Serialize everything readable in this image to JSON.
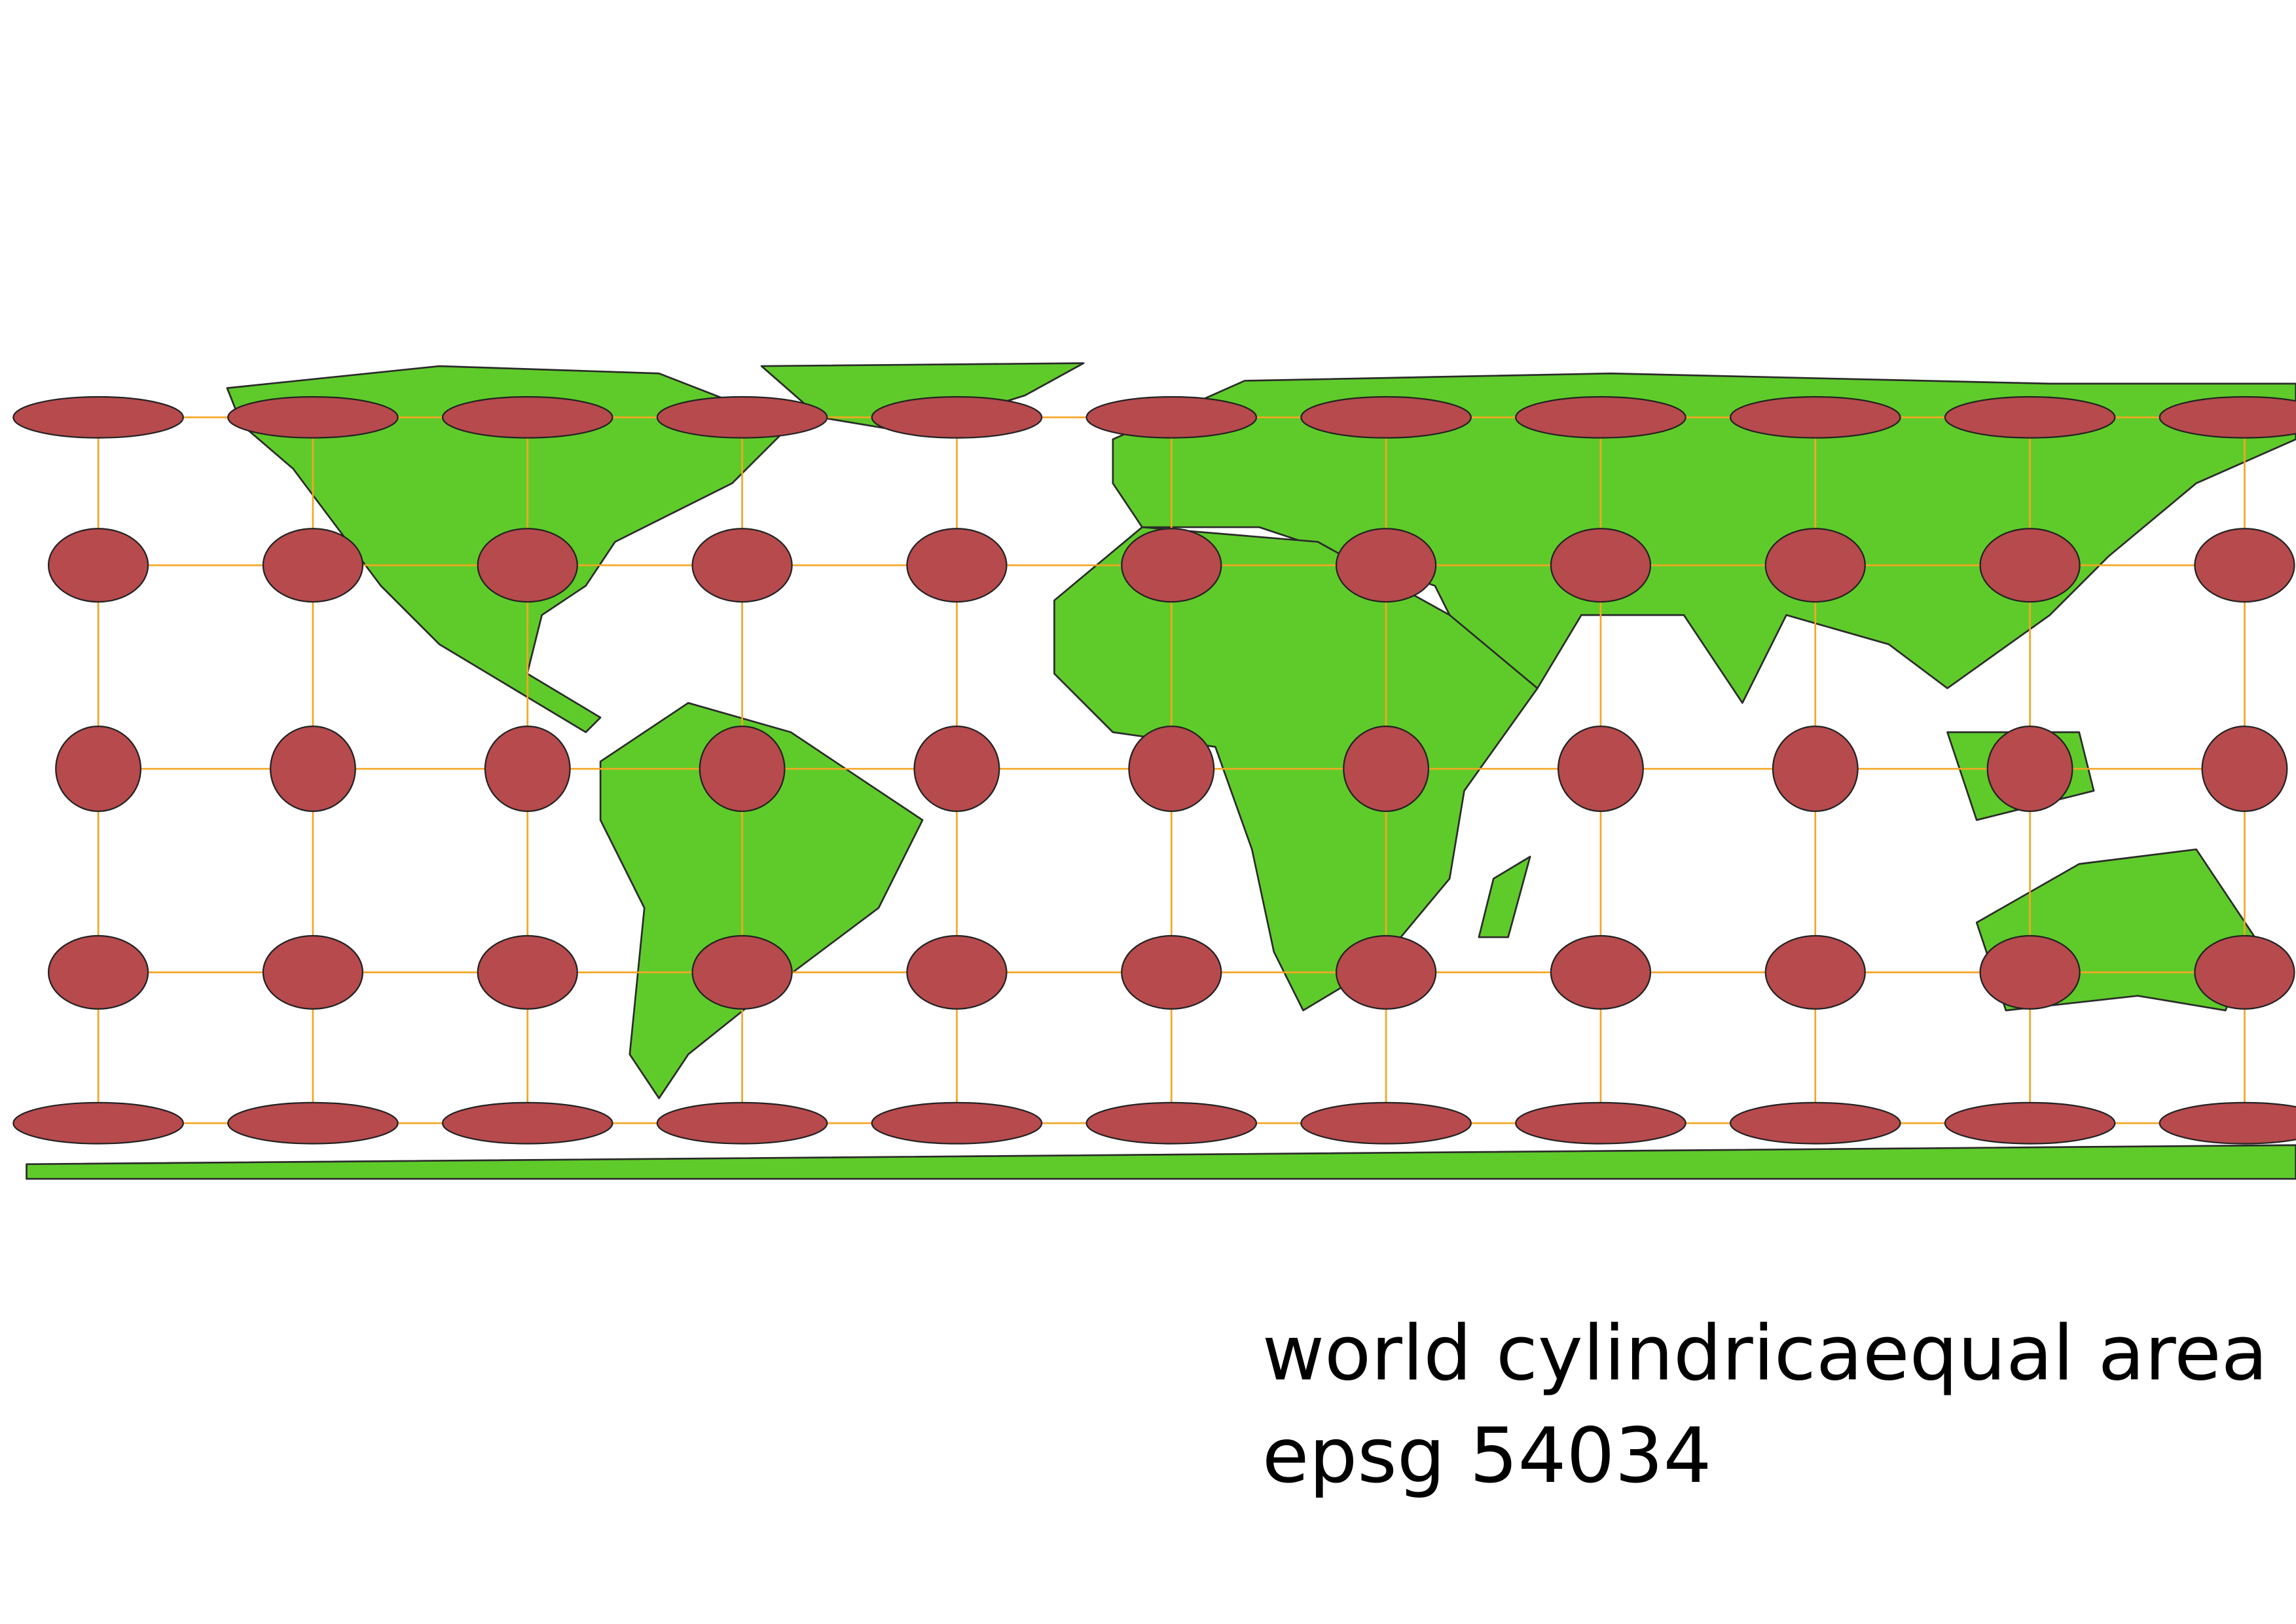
{
  "title_lines": [
    "world cylindricaequal area",
    "epsg 54034"
  ]
}
